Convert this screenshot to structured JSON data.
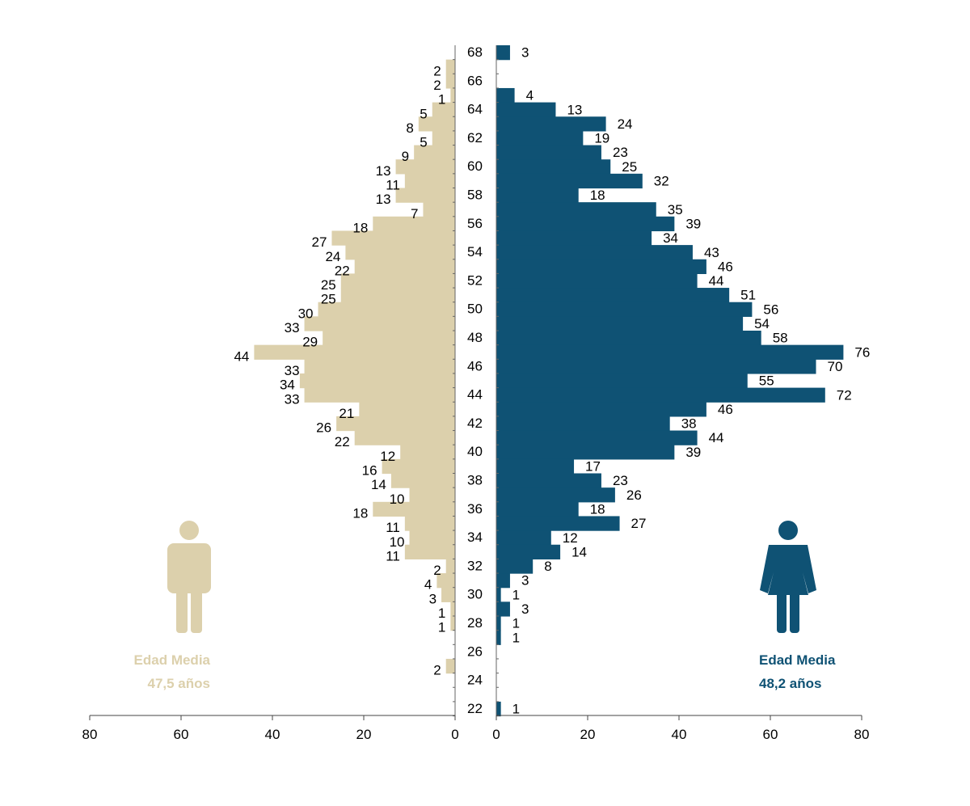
{
  "colors": {
    "male": "#dcd0ac",
    "female": "#0f5274"
  },
  "legend": {
    "male": {
      "line1": "Edad Media",
      "line2": "47,5 años"
    },
    "female": {
      "line1": "Edad Media",
      "line2": "48,2 años"
    }
  },
  "chart_data": {
    "type": "bar",
    "orientation": "horizontal-pyramid",
    "title": "",
    "xlim": [
      0,
      80
    ],
    "x_ticks": [
      80,
      60,
      40,
      20,
      0
    ],
    "age_tick_labels": [
      68,
      66,
      64,
      62,
      60,
      58,
      56,
      54,
      52,
      50,
      48,
      46,
      44,
      42,
      40,
      38,
      36,
      34,
      32,
      30,
      28,
      26,
      24,
      22
    ],
    "ages": [
      68,
      67,
      66,
      65,
      64,
      63,
      62,
      61,
      60,
      59,
      58,
      57,
      56,
      55,
      54,
      53,
      52,
      51,
      50,
      49,
      48,
      47,
      46,
      45,
      44,
      43,
      42,
      41,
      40,
      39,
      38,
      37,
      36,
      35,
      34,
      33,
      32,
      31,
      30,
      29,
      28,
      27,
      26,
      25,
      24,
      23,
      22
    ],
    "series": [
      {
        "name": "Edad Media 47,5 años",
        "side": "left",
        "values": [
          null,
          2,
          2,
          1,
          5,
          8,
          5,
          9,
          13,
          11,
          13,
          7,
          18,
          27,
          24,
          22,
          25,
          25,
          30,
          33,
          29,
          44,
          33,
          34,
          33,
          21,
          26,
          22,
          12,
          16,
          14,
          10,
          18,
          11,
          10,
          11,
          2,
          4,
          3,
          1,
          1,
          null,
          null,
          2,
          null,
          null,
          null
        ]
      },
      {
        "name": "Edad Media 48,2 años",
        "side": "right",
        "values": [
          3,
          null,
          null,
          4,
          13,
          24,
          19,
          23,
          25,
          32,
          18,
          35,
          39,
          34,
          43,
          46,
          44,
          51,
          56,
          54,
          58,
          76,
          70,
          55,
          72,
          46,
          38,
          44,
          39,
          17,
          23,
          26,
          18,
          27,
          12,
          14,
          8,
          3,
          1,
          3,
          1,
          1,
          null,
          null,
          null,
          null,
          1
        ]
      }
    ]
  }
}
